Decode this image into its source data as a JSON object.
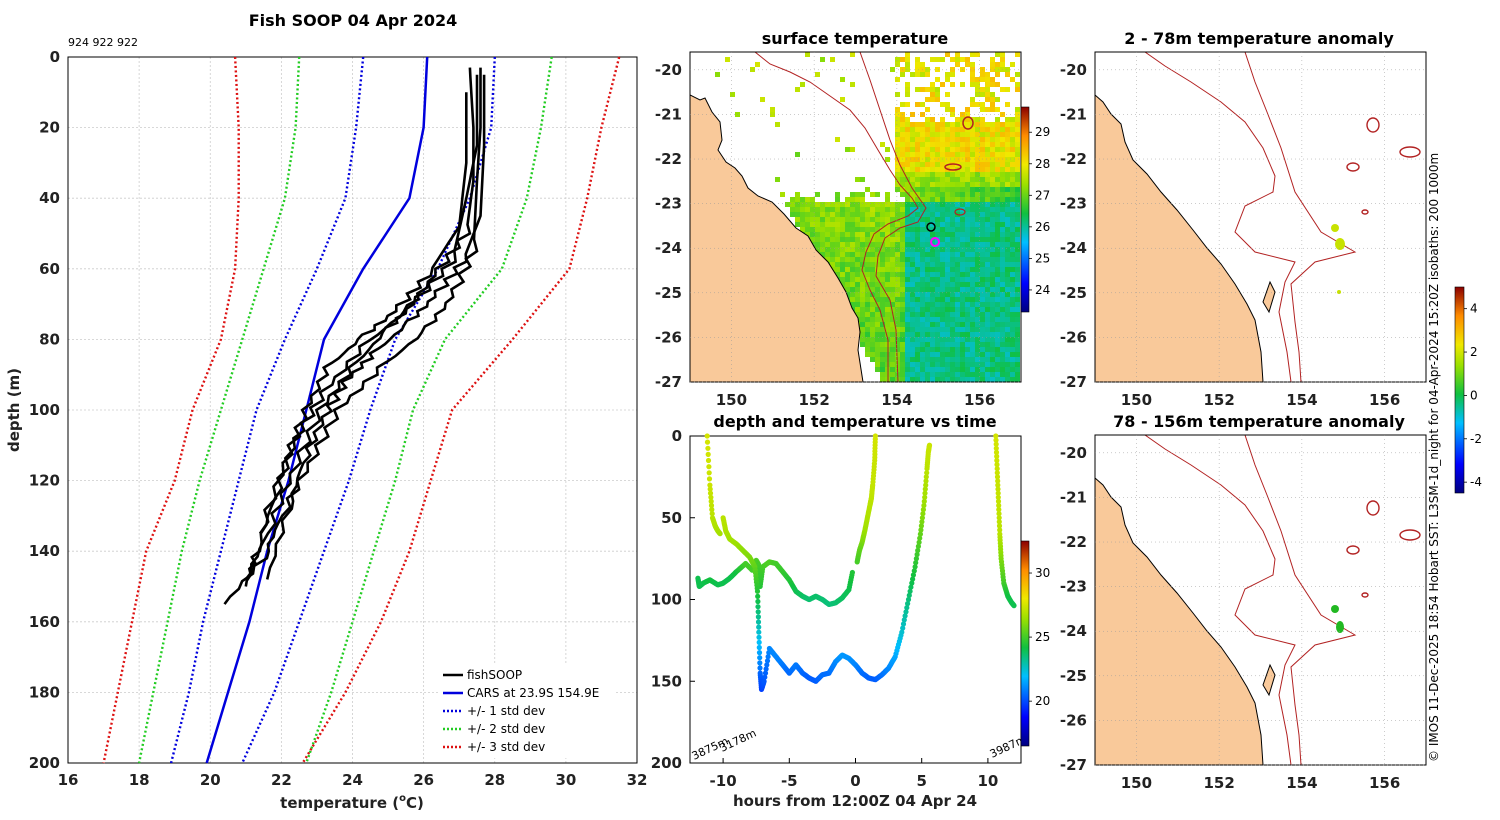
{
  "colors": {
    "fishsoop": "#000000",
    "cars": "#0000dd",
    "std1": "#0000dd",
    "std2": "#22cc22",
    "std3": "#dd1111",
    "land": "#f9c99a",
    "isobath": "#b22222"
  },
  "side_text": "© IMOS 11-Dec-2025 18:54 Hobart SST: L3SM-1d_night for 04-Apr-2024 15:20Z isobaths: 200  1000m",
  "chart_data": [
    {
      "type": "line",
      "name": "profile",
      "title": "Fish SOOP 04 Apr 2024",
      "subtitle": "924 922 922",
      "xlabel": "temperature (",
      "xlabel_sup": "o",
      "xlabel_end": "C)",
      "ylabel": "depth (m)",
      "xlim": [
        16,
        32
      ],
      "ylim": [
        0,
        200
      ],
      "xticks": [
        16,
        18,
        20,
        22,
        24,
        26,
        28,
        30,
        32
      ],
      "yticks": [
        0,
        20,
        40,
        60,
        80,
        100,
        120,
        140,
        160,
        180,
        200
      ],
      "legend": [
        "fishSOOP",
        "CARS at 23.9S 154.9E",
        "+/- 1 std dev",
        "+/- 2 std dev",
        "+/- 3 std dev"
      ],
      "legend_position": "bottom-right",
      "depths": [
        0,
        20,
        40,
        60,
        80,
        100,
        120,
        140,
        160,
        180,
        200
      ],
      "cars": [
        26.1,
        26.0,
        25.6,
        24.3,
        23.2,
        22.7,
        22.2,
        21.6,
        21.1,
        20.5,
        19.9
      ],
      "plus1": [
        28.0,
        27.9,
        27.3,
        26.4,
        25.2,
        24.5,
        23.9,
        23.2,
        22.5,
        21.8,
        20.9
      ],
      "minus1": [
        24.3,
        24.1,
        23.8,
        23.0,
        22.1,
        21.3,
        20.8,
        20.3,
        19.8,
        19.4,
        18.9
      ],
      "plus2": [
        29.6,
        29.3,
        28.9,
        28.2,
        26.6,
        25.7,
        25.2,
        24.6,
        24.0,
        23.4,
        22.7
      ],
      "minus2": [
        22.5,
        22.4,
        22.1,
        21.5,
        20.9,
        20.3,
        19.7,
        19.2,
        18.8,
        18.4,
        18.0
      ],
      "plus3": [
        31.5,
        31.0,
        30.6,
        30.1,
        28.5,
        26.8,
        26.2,
        25.6,
        24.8,
        23.8,
        22.6
      ],
      "minus3": [
        20.7,
        20.8,
        20.8,
        20.7,
        20.3,
        19.5,
        19.0,
        18.2,
        17.8,
        17.4,
        17.0
      ],
      "fish_profiles": [
        {
          "temp": [
            27.3,
            27.4,
            27.4,
            27.2,
            26.3,
            25.5,
            24.3,
            23.2,
            22.4,
            21.8,
            21.3,
            21.0
          ],
          "depth": [
            3,
            20,
            35,
            50,
            62,
            72,
            82,
            95,
            108,
            125,
            140,
            150
          ]
        },
        {
          "temp": [
            27.6,
            27.6,
            27.5,
            27.4,
            26.8,
            26.0,
            24.8,
            23.6,
            22.8,
            22.0,
            21.5,
            20.4
          ],
          "depth": [
            3,
            20,
            35,
            55,
            68,
            78,
            88,
            100,
            115,
            130,
            142,
            155
          ]
        },
        {
          "temp": [
            27.5,
            27.5,
            27.2,
            26.8,
            25.7,
            24.9,
            24.0,
            23.1,
            22.3,
            21.6,
            21.0
          ],
          "depth": [
            5,
            25,
            40,
            58,
            70,
            78,
            88,
            100,
            118,
            135,
            148
          ]
        },
        {
          "temp": [
            27.2,
            27.2,
            27.0,
            26.1,
            25.2,
            24.2,
            23.3,
            22.7,
            22.1,
            21.4
          ],
          "depth": [
            10,
            30,
            48,
            62,
            72,
            80,
            88,
            100,
            115,
            135
          ]
        },
        {
          "temp": [
            27.7,
            27.7,
            27.6,
            27.1,
            26.3,
            25.5,
            24.6,
            23.8,
            23.2,
            22.6,
            22.2,
            21.6
          ],
          "depth": [
            5,
            25,
            45,
            58,
            68,
            76,
            84,
            92,
            102,
            115,
            128,
            148
          ]
        }
      ]
    },
    {
      "type": "heatmap",
      "name": "surface",
      "title": "surface temperature",
      "xlim": [
        149,
        157
      ],
      "ylim": [
        -27,
        -19.6
      ],
      "xticks": [
        150,
        152,
        154,
        156
      ],
      "yticks": [
        -20,
        -21,
        -22,
        -23,
        -24,
        -25,
        -26,
        -27
      ],
      "colorbar_ticks": [
        24,
        25,
        26,
        27,
        28,
        29
      ],
      "colorbar_range": [
        23.3,
        29.8
      ]
    },
    {
      "type": "heatmap",
      "name": "anom1",
      "title": "2 - 78m temperature anomaly",
      "xlim": [
        149,
        157
      ],
      "ylim": [
        -27,
        -19.6
      ],
      "xticks": [
        150,
        152,
        154,
        156
      ],
      "yticks": [
        -20,
        -21,
        -22,
        -23,
        -24,
        -25,
        -26,
        -27
      ]
    },
    {
      "type": "heatmap",
      "name": "anom2",
      "title": "78 - 156m temperature anomaly",
      "xlim": [
        149,
        157
      ],
      "ylim": [
        -27,
        -19.6
      ],
      "xticks": [
        150,
        152,
        154,
        156
      ],
      "yticks": [
        -20,
        -21,
        -22,
        -23,
        -24,
        -25,
        -26,
        -27
      ]
    },
    {
      "type": "scatter",
      "name": "timeseries",
      "title": "depth and temperature vs time",
      "xlabel": "hours from 12:00Z 04 Apr 24",
      "xlim": [
        -12.5,
        12.5
      ],
      "ylim": [
        0,
        200
      ],
      "xticks": [
        -10,
        -5,
        0,
        5,
        10
      ],
      "yticks": [
        0,
        50,
        100,
        150,
        200
      ],
      "colorbar_ticks": [
        20,
        25,
        30
      ],
      "colorbar_range": [
        16.5,
        32.5
      ],
      "annotations": [
        "3875m",
        "3178m",
        "3987m"
      ],
      "casts": [
        {
          "t": [
            -11.9,
            -11.8,
            -11.5,
            -11.0,
            -10.4,
            -10.0,
            -9.5,
            -9.0,
            -8.3,
            -7.8,
            -7.5,
            -7.3,
            -7.2,
            -7.0,
            -6.5,
            -6.0,
            -5.5,
            -5.0,
            -4.5,
            -4.0,
            -3.5,
            -3.0,
            -2.5,
            -2.0,
            -1.5,
            -1.0,
            -0.5,
            -0.2
          ],
          "d": [
            87,
            92,
            90,
            88,
            91,
            90,
            87,
            83,
            78,
            82,
            76,
            79,
            92,
            80,
            77,
            78,
            83,
            88,
            95,
            98,
            100,
            98,
            100,
            103,
            102,
            99,
            94,
            82
          ],
          "temp": [
            24.0,
            24.0,
            24.0,
            24.2,
            24.0,
            24.0,
            24.0,
            24.2,
            25.0,
            25.0,
            25.2,
            25.0,
            24.5,
            25.0,
            25.2,
            25.0,
            24.8,
            24.5,
            24.0,
            23.8,
            23.6,
            23.7,
            23.6,
            23.5,
            23.6,
            23.8,
            24.0,
            24.5
          ]
        },
        {
          "t": [
            -10.0,
            -9.8,
            -9.5,
            -9.0,
            -8.5,
            -8.0,
            -7.6,
            -7.4,
            -7.3,
            -7.2,
            -7.1,
            -6.9,
            -6.5,
            -6.0,
            -5.5,
            -5.0,
            -4.5,
            -4.0,
            -3.5,
            -3.0,
            -2.5,
            -2.0,
            -1.5,
            -1.0,
            -0.5,
            0.0,
            0.5,
            1.0,
            1.5,
            2.0,
            2.5,
            3.0,
            3.5,
            4.0,
            4.5,
            4.9,
            5.2,
            5.4,
            5.5,
            5.6
          ],
          "d": [
            50,
            58,
            63,
            66,
            70,
            74,
            80,
            95,
            120,
            145,
            155,
            150,
            130,
            135,
            140,
            145,
            140,
            145,
            148,
            150,
            146,
            145,
            138,
            134,
            136,
            140,
            145,
            148,
            149,
            146,
            142,
            135,
            120,
            100,
            80,
            60,
            40,
            20,
            10,
            5
          ],
          "temp": [
            27.0,
            26.8,
            26.6,
            26.5,
            26.2,
            26.0,
            25.5,
            24.5,
            22.5,
            20.5,
            19.8,
            20.2,
            21.0,
            21.0,
            20.8,
            20.5,
            20.8,
            20.5,
            20.3,
            20.3,
            20.6,
            20.6,
            21.0,
            21.3,
            21.2,
            21.0,
            20.6,
            20.4,
            20.3,
            20.6,
            21.0,
            21.5,
            22.5,
            23.5,
            24.5,
            25.5,
            26.5,
            27.0,
            27.2,
            27.3
          ]
        },
        {
          "t": [
            -11.2,
            -11.0,
            -10.8,
            -10.6,
            -10.4,
            -10.2
          ],
          "d": [
            0,
            30,
            50,
            55,
            58,
            60
          ],
          "temp": [
            27.5,
            27.3,
            27.0,
            26.8,
            26.7,
            26.6
          ]
        },
        {
          "t": [
            1.5,
            1.45,
            1.3,
            1.2,
            1.1,
            0.9,
            0.7,
            0.5,
            0.3,
            0.1
          ],
          "d": [
            0,
            15,
            30,
            38,
            42,
            50,
            58,
            65,
            70,
            78
          ],
          "temp": [
            27.5,
            27.3,
            27.2,
            27.1,
            27.0,
            26.8,
            26.5,
            26.0,
            25.5,
            25.0
          ]
        },
        {
          "t": [
            10.6,
            10.7,
            10.8,
            10.9,
            11.0,
            11.2,
            11.5,
            11.8,
            12.0
          ],
          "d": [
            0,
            20,
            40,
            60,
            75,
            90,
            98,
            102,
            104
          ],
          "temp": [
            27.5,
            27.3,
            27.2,
            27.0,
            26.0,
            25.0,
            24.2,
            24.0,
            24.0
          ]
        }
      ]
    },
    {
      "type": "heatmap",
      "name": "anom_colorbar",
      "colorbar_ticks": [
        -4,
        -2,
        0,
        2,
        4
      ],
      "colorbar_range": [
        -4.5,
        5.0
      ]
    }
  ]
}
